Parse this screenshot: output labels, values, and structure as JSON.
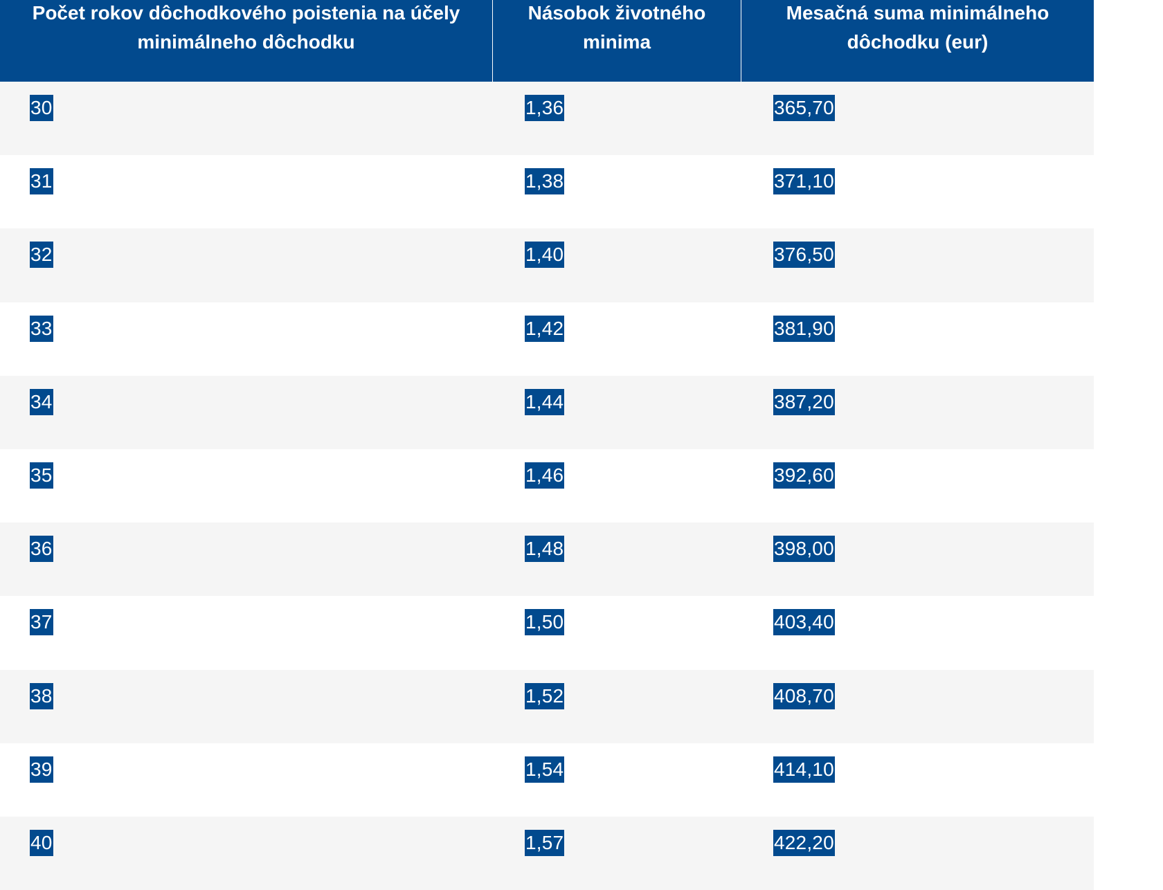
{
  "header": {
    "col1": "Počet rokov dôchodkového poistenia na účely\nminimálneho dôchodku",
    "col2": "Násobok životného\nminima",
    "col3": "Mesačná suma minimálneho\ndôchodku (eur)"
  },
  "rows": [
    {
      "years": "30",
      "multiple": "1,36",
      "amount": "365,70"
    },
    {
      "years": "31",
      "multiple": "1,38",
      "amount": "371,10"
    },
    {
      "years": "32",
      "multiple": "1,40",
      "amount": "376,50"
    },
    {
      "years": "33",
      "multiple": "1,42",
      "amount": "381,90"
    },
    {
      "years": "34",
      "multiple": "1,44",
      "amount": "387,20"
    },
    {
      "years": "35",
      "multiple": "1,46",
      "amount": "392,60"
    },
    {
      "years": "36",
      "multiple": "1,48",
      "amount": "398,00"
    },
    {
      "years": "37",
      "multiple": "1,50",
      "amount": "403,40"
    },
    {
      "years": "38",
      "multiple": "1,52",
      "amount": "408,70"
    },
    {
      "years": "39",
      "multiple": "1,54",
      "amount": "414,10"
    },
    {
      "years": "40",
      "multiple": "1,57",
      "amount": "422,20"
    }
  ],
  "colors": {
    "header_bg": "#024a8e",
    "highlight_bg": "#024a8e",
    "row_bg": "#f5f5f5",
    "row_alt_bg": "#ffffff"
  }
}
